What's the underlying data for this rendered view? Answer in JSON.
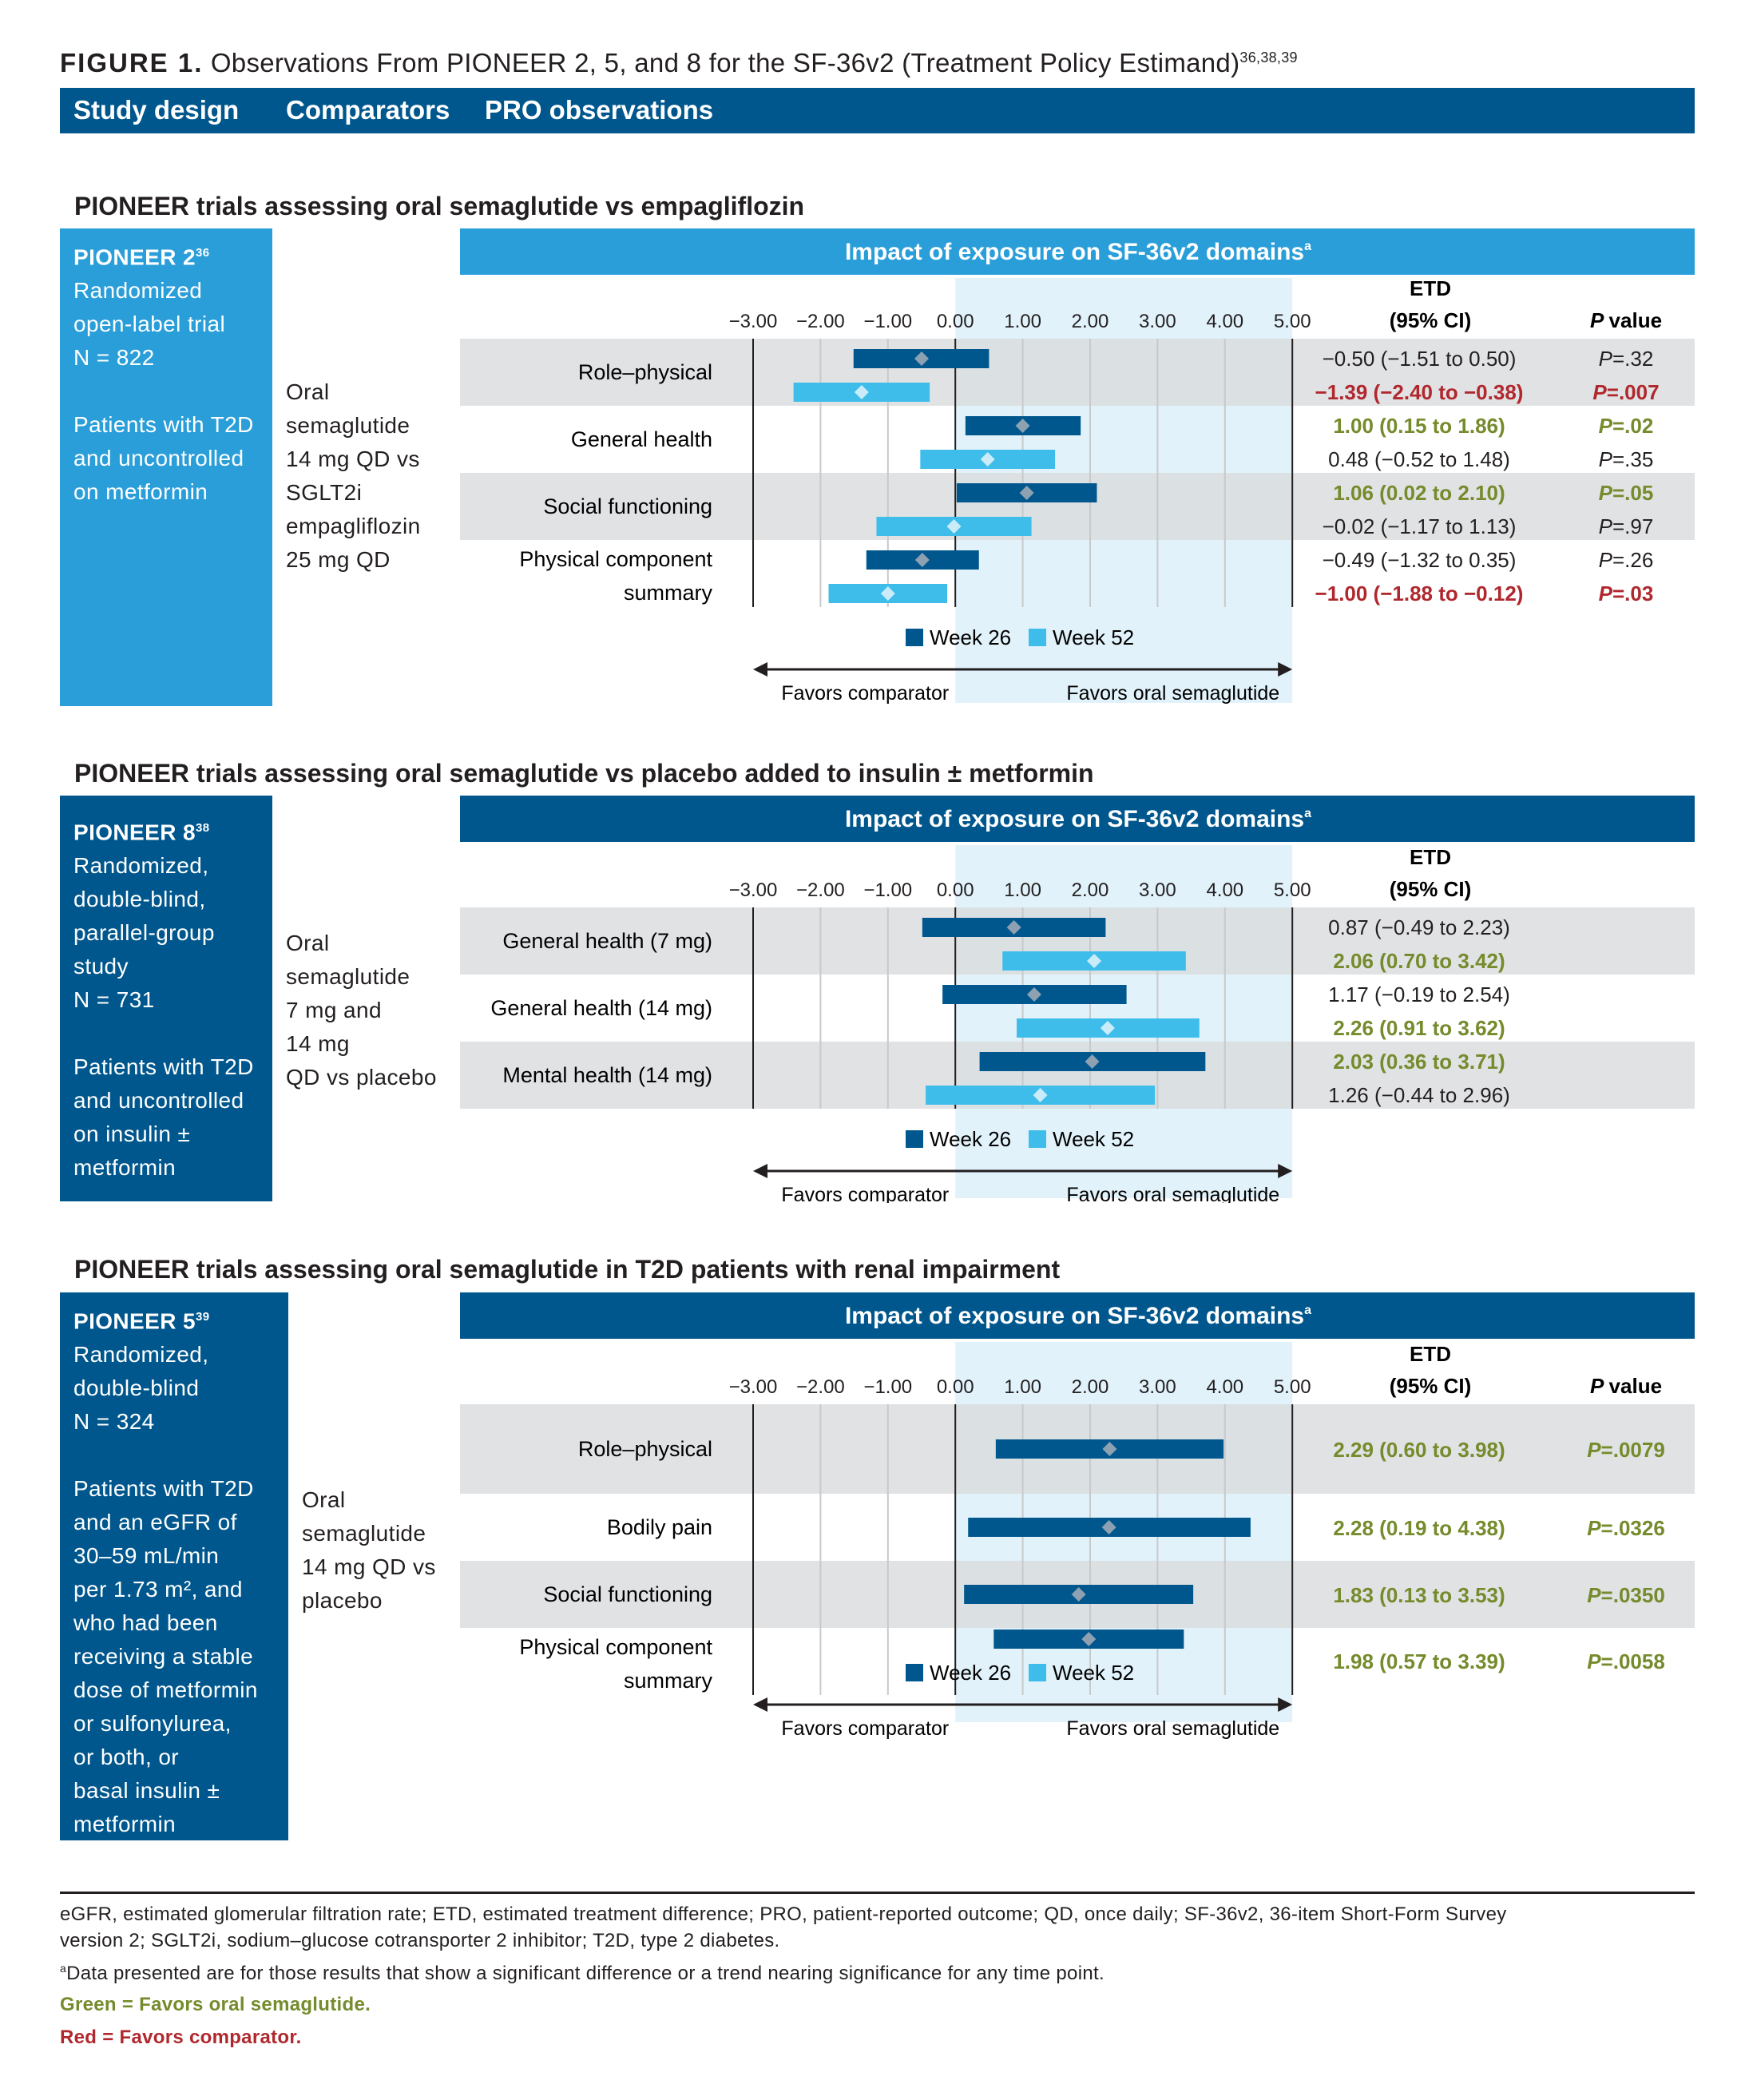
{
  "figure": {
    "label": "FIGURE 1.",
    "title": "Observations From PIONEER 2, 5, and 8 for the SF-36v2 (Treatment Policy Estimand)",
    "refs": "36,38,39"
  },
  "header_columns": [
    "Study design",
    "Comparators",
    "PRO observations"
  ],
  "colors": {
    "dark_blue": "#00578d",
    "mid_blue": "#2a9ed9",
    "light_blue_bar": "#3ebdeb",
    "panel_bg": "#e1f2fa",
    "band_grey": "#dadbdd",
    "green": "#758b2c",
    "red": "#b0282d"
  },
  "chart_data": [
    {
      "type": "forest",
      "section_title": "PIONEER trials assessing oral semaglutide vs empagliflozin",
      "study": {
        "name": "PIONEER 2",
        "ref": "36",
        "lines": [
          "Randomized",
          "open-label trial",
          "N = 822",
          "",
          "Patients with T2D",
          "and uncontrolled",
          "on metformin"
        ]
      },
      "comparator_lines": [
        "Oral",
        "semaglutide",
        "14 mg QD vs",
        "SGLT2i",
        "empagliflozin",
        "25 mg QD"
      ],
      "panel_title": "Impact of exposure on SF-36v2 domains",
      "panel_title_sup": "a",
      "xlim": [
        -3,
        5
      ],
      "ticks": [
        "−3.00",
        "−2.00",
        "−1.00",
        "0.00",
        "1.00",
        "2.00",
        "3.00",
        "4.00",
        "5.00"
      ],
      "etd_header": [
        "ETD",
        "(95% CI)"
      ],
      "pvalue_header": "P value",
      "show_pvalue": true,
      "groups": [
        {
          "label": [
            "Role–physical"
          ],
          "band": true,
          "rows": [
            {
              "week": 26,
              "est": -0.5,
              "lo": -1.51,
              "hi": 0.5,
              "etd": "−0.50 (−1.51 to 0.50)",
              "p": ".32",
              "color": "normal"
            },
            {
              "week": 52,
              "est": -1.39,
              "lo": -2.4,
              "hi": -0.38,
              "etd": "−1.39 (−2.40 to −0.38)",
              "p": ".007",
              "color": "red"
            }
          ]
        },
        {
          "label": [
            "General health"
          ],
          "band": false,
          "rows": [
            {
              "week": 26,
              "est": 1.0,
              "lo": 0.15,
              "hi": 1.86,
              "etd": "1.00 (0.15 to 1.86)",
              "p": ".02",
              "color": "green"
            },
            {
              "week": 52,
              "est": 0.48,
              "lo": -0.52,
              "hi": 1.48,
              "etd": "0.48 (−0.52 to 1.48)",
              "p": ".35",
              "color": "normal"
            }
          ]
        },
        {
          "label": [
            "Social functioning"
          ],
          "band": true,
          "rows": [
            {
              "week": 26,
              "est": 1.06,
              "lo": 0.02,
              "hi": 2.1,
              "etd": "1.06 (0.02 to 2.10)",
              "p": ".05",
              "color": "green"
            },
            {
              "week": 52,
              "est": -0.02,
              "lo": -1.17,
              "hi": 1.13,
              "etd": "−0.02 (−1.17 to 1.13)",
              "p": ".97",
              "color": "normal"
            }
          ]
        },
        {
          "label": [
            "Physical component",
            "summary"
          ],
          "band": false,
          "rows": [
            {
              "week": 26,
              "est": -0.49,
              "lo": -1.32,
              "hi": 0.35,
              "etd": "−0.49 (−1.32 to 0.35)",
              "p": ".26",
              "color": "normal"
            },
            {
              "week": 52,
              "est": -1.0,
              "lo": -1.88,
              "hi": -0.12,
              "etd": "−1.00 (−1.88 to −0.12)",
              "p": ".03",
              "color": "red"
            }
          ]
        }
      ],
      "legend": [
        "Week 26",
        "Week 52"
      ],
      "favors_left": "Favors comparator",
      "favors_right": "Favors oral semaglutide"
    },
    {
      "type": "forest",
      "section_title": "PIONEER trials assessing oral semaglutide vs placebo added to insulin ± metformin",
      "study": {
        "name": "PIONEER 8",
        "ref": "38",
        "lines": [
          "Randomized,",
          "double-blind,",
          "parallel-group",
          "study",
          "N = 731",
          "",
          "Patients with T2D",
          "and uncontrolled",
          "on insulin ±",
          "metformin"
        ]
      },
      "comparator_lines": [
        "Oral",
        "semaglutide",
        "7 mg and",
        "14 mg",
        "QD vs placebo"
      ],
      "panel_title": "Impact of exposure on SF-36v2 domains",
      "panel_title_sup": "a",
      "xlim": [
        -3,
        5
      ],
      "ticks": [
        "−3.00",
        "−2.00",
        "−1.00",
        "0.00",
        "1.00",
        "2.00",
        "3.00",
        "4.00",
        "5.00"
      ],
      "etd_header": [
        "ETD",
        "(95% CI)"
      ],
      "pvalue_header": "",
      "show_pvalue": false,
      "groups": [
        {
          "label": [
            "General health (7 mg)"
          ],
          "band": true,
          "rows": [
            {
              "week": 26,
              "est": 0.87,
              "lo": -0.49,
              "hi": 2.23,
              "etd": "0.87 (−0.49 to 2.23)",
              "p": "",
              "color": "normal"
            },
            {
              "week": 52,
              "est": 2.06,
              "lo": 0.7,
              "hi": 3.42,
              "etd": "2.06 (0.70 to 3.42)",
              "p": "",
              "color": "green"
            }
          ]
        },
        {
          "label": [
            "General health (14 mg)"
          ],
          "band": false,
          "rows": [
            {
              "week": 26,
              "est": 1.17,
              "lo": -0.19,
              "hi": 2.54,
              "etd": "1.17 (−0.19 to 2.54)",
              "p": "",
              "color": "normal"
            },
            {
              "week": 52,
              "est": 2.26,
              "lo": 0.91,
              "hi": 3.62,
              "etd": "2.26 (0.91 to 3.62)",
              "p": "",
              "color": "green"
            }
          ]
        },
        {
          "label": [
            "Mental health (14 mg)"
          ],
          "band": true,
          "rows": [
            {
              "week": 26,
              "est": 2.03,
              "lo": 0.36,
              "hi": 3.71,
              "etd": "2.03 (0.36 to 3.71)",
              "p": "",
              "color": "green"
            },
            {
              "week": 52,
              "est": 1.26,
              "lo": -0.44,
              "hi": 2.96,
              "etd": "1.26 (−0.44 to 2.96)",
              "p": "",
              "color": "normal"
            }
          ]
        }
      ],
      "legend": [
        "Week 26",
        "Week 52"
      ],
      "favors_left": "Favors comparator",
      "favors_right": "Favors oral semaglutide"
    },
    {
      "type": "forest",
      "section_title": "PIONEER trials assessing oral semaglutide in T2D patients with renal impairment",
      "study": {
        "name": "PIONEER 5",
        "ref": "39",
        "lines": [
          "Randomized,",
          "double-blind",
          "N  = 324",
          "",
          "Patients with T2D",
          "and an eGFR of",
          "30–59 mL/min",
          "per 1.73 m², and",
          "who had been",
          "receiving a stable",
          "dose of metformin",
          "or sulfonylurea,",
          "or both, or",
          "basal insulin ±",
          "metformin"
        ]
      },
      "comparator_lines": [
        "Oral",
        "semaglutide",
        "14 mg QD vs",
        "placebo"
      ],
      "panel_title": "Impact of exposure on SF-36v2 domains",
      "panel_title_sup": "a",
      "xlim": [
        -3,
        5
      ],
      "ticks": [
        "−3.00",
        "−2.00",
        "−1.00",
        "0.00",
        "1.00",
        "2.00",
        "3.00",
        "4.00",
        "5.00"
      ],
      "etd_header": [
        "ETD",
        "(95% CI)"
      ],
      "pvalue_header": "P value",
      "show_pvalue": true,
      "groups": [
        {
          "label": [
            "Role–physical"
          ],
          "band": true,
          "rows": [
            {
              "week": 26,
              "est": 2.29,
              "lo": 0.6,
              "hi": 3.98,
              "etd": "2.29 (0.60 to 3.98)",
              "p": ".0079",
              "color": "green"
            }
          ]
        },
        {
          "label": [
            "Bodily pain"
          ],
          "band": false,
          "rows": [
            {
              "week": 26,
              "est": 2.28,
              "lo": 0.19,
              "hi": 4.38,
              "etd": "2.28 (0.19 to 4.38)",
              "p": ".0326",
              "color": "green"
            }
          ]
        },
        {
          "label": [
            "Social functioning"
          ],
          "band": true,
          "rows": [
            {
              "week": 26,
              "est": 1.83,
              "lo": 0.13,
              "hi": 3.53,
              "etd": "1.83 (0.13 to 3.53)",
              "p": ".0350",
              "color": "green"
            }
          ]
        },
        {
          "label": [
            "Physical component",
            "summary"
          ],
          "band": false,
          "rows": [
            {
              "week": 26,
              "est": 1.98,
              "lo": 0.57,
              "hi": 3.39,
              "etd": "1.98 (0.57 to 3.39)",
              "p": ".0058",
              "color": "green"
            }
          ]
        }
      ],
      "legend": [
        "Week 26",
        "Week 52"
      ],
      "favors_left": "Favors comparator",
      "favors_right": "Favors oral semaglutide"
    }
  ],
  "footnotes": {
    "abbrev1": "eGFR, estimated glomerular filtration rate; ETD, estimated treatment difference; PRO, patient-reported outcome; QD, once daily; SF-36v2, 36-item Short-Form Survey",
    "abbrev2": "version 2; SGLT2i, sodium–glucose cotransporter 2 inhibitor; T2D, type 2 diabetes.",
    "note_a_marker": "a",
    "note_a": "Data presented are for those results that show a significant difference or a trend nearing significance for any time point.",
    "green_note": "Green = Favors oral semaglutide.",
    "red_note": "Red = Favors comparator."
  }
}
